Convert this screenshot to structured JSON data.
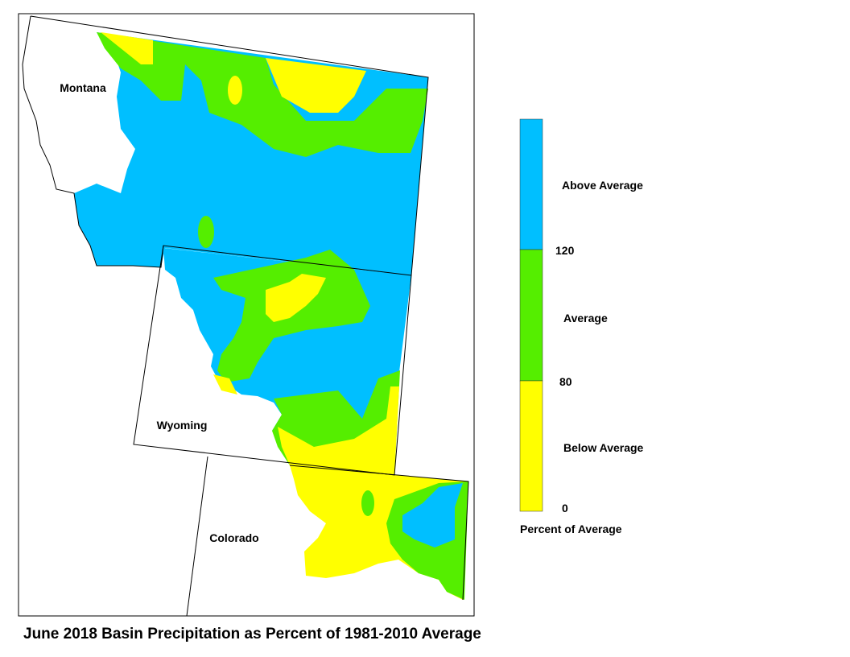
{
  "title": "June 2018 Basin Precipitation as Percent of 1981-2010 Average",
  "states": [
    {
      "label": "Montana"
    },
    {
      "label": "Wyoming"
    },
    {
      "label": "Colorado"
    }
  ],
  "legend": {
    "title": "Percent of Average",
    "categories": [
      "Above Average",
      "Average",
      "Below Average"
    ],
    "breaks": [
      120,
      80,
      0
    ]
  }
}
